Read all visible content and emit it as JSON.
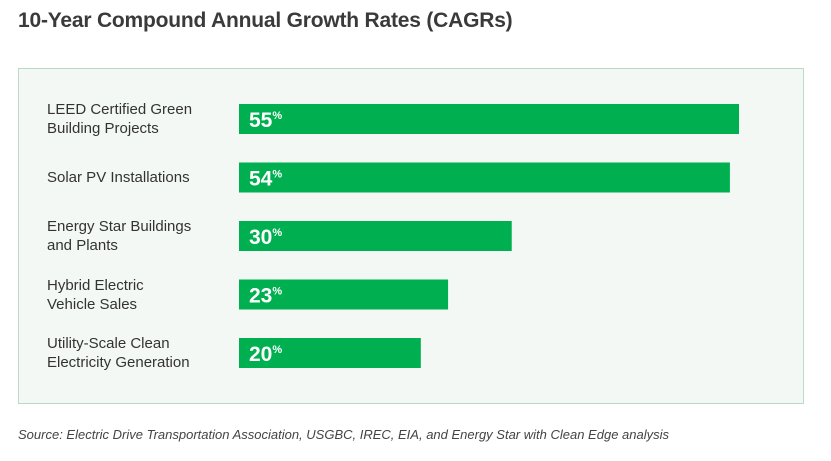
{
  "title": "10-Year Compound Annual Growth Rates (CAGRs)",
  "chart_data": {
    "type": "bar",
    "orientation": "horizontal",
    "title": "10-Year Compound Annual Growth Rates (CAGRs)",
    "categories": [
      [
        "LEED Certified Green",
        "Building Projects"
      ],
      [
        "Solar PV Installations"
      ],
      [
        "Energy Star Buildings",
        "and Plants"
      ],
      [
        "Hybrid Electric",
        "Vehicle Sales"
      ],
      [
        "Utility-Scale Clean",
        "Electricity Generation"
      ]
    ],
    "values": [
      55,
      54,
      30,
      23,
      20
    ],
    "data_labels": [
      "55",
      "54",
      "30",
      "23",
      "20"
    ],
    "unit_suffix": "%",
    "xlim": [
      0,
      55
    ],
    "bar_color": "#00b050",
    "label_color": "#ffffff",
    "grid": false,
    "xlabel": "",
    "ylabel": ""
  },
  "source": "Source: Electric Drive Transportation Association, USGBC, IREC, EIA, and Energy Star with Clean Edge analysis"
}
